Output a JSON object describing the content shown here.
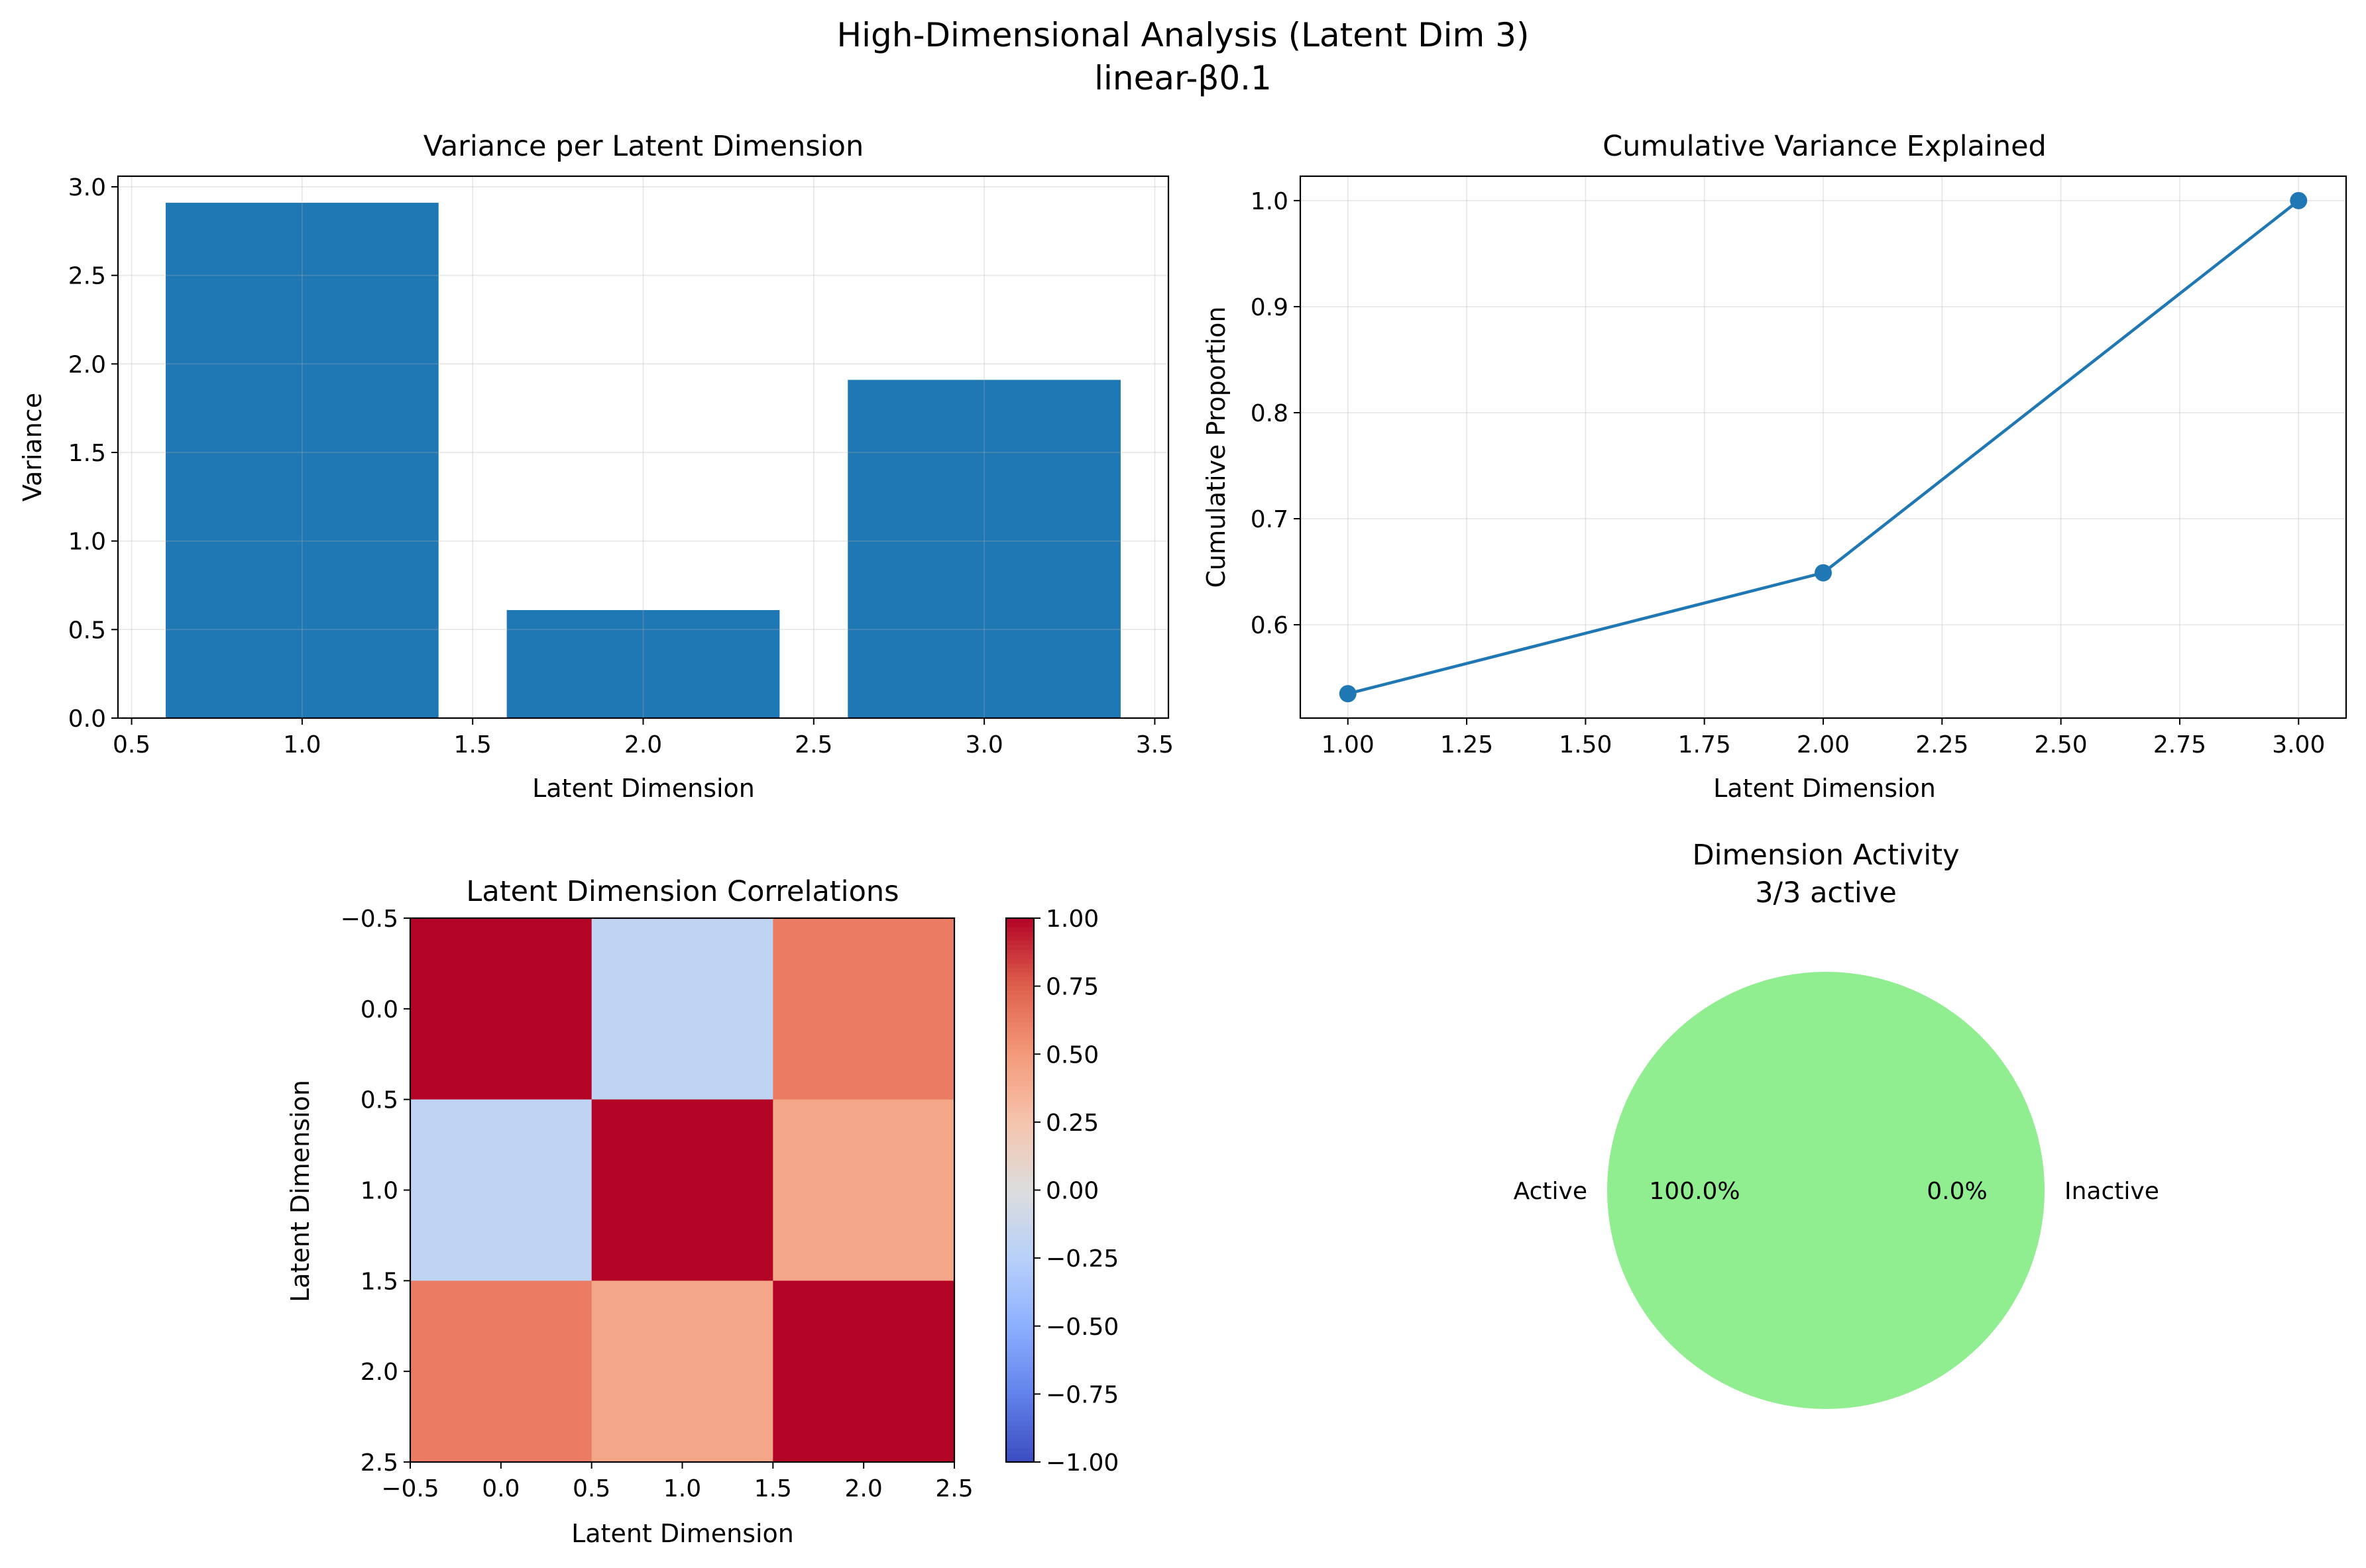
{
  "figure": {
    "title_line1": "High-Dimensional Analysis (Latent Dim 3)",
    "title_line2": "linear-β0.1"
  },
  "chart_data": [
    {
      "type": "bar",
      "title": "Variance per Latent Dimension",
      "xlabel": "Latent Dimension",
      "ylabel": "Variance",
      "x": [
        1,
        2,
        3
      ],
      "values": [
        2.91,
        0.61,
        1.91
      ],
      "bar_width": 0.8,
      "xlim": [
        0.46,
        3.54
      ],
      "ylim": [
        0,
        3.06
      ],
      "xticks": [
        0.5,
        1.0,
        1.5,
        2.0,
        2.5,
        3.0,
        3.5
      ],
      "xtick_labels": [
        "0.5",
        "1.0",
        "1.5",
        "2.0",
        "2.5",
        "3.0",
        "3.5"
      ],
      "yticks": [
        0,
        0.5,
        1.0,
        1.5,
        2.0,
        2.5,
        3.0
      ],
      "ytick_labels": [
        "0.0",
        "0.5",
        "1.0",
        "1.5",
        "2.0",
        "2.5",
        "3.0"
      ],
      "color": "#1f77b4",
      "grid": true
    },
    {
      "type": "line",
      "title": "Cumulative Variance Explained",
      "xlabel": "Latent Dimension",
      "ylabel": "Cumulative Proportion",
      "x": [
        1,
        2,
        3
      ],
      "values": [
        0.535,
        0.649,
        1.0
      ],
      "xlim": [
        0.9,
        3.1
      ],
      "ylim": [
        0.512,
        1.023
      ],
      "xticks": [
        1.0,
        1.25,
        1.5,
        1.75,
        2.0,
        2.25,
        2.5,
        2.75,
        3.0
      ],
      "xtick_labels": [
        "1.00",
        "1.25",
        "1.50",
        "1.75",
        "2.00",
        "2.25",
        "2.50",
        "2.75",
        "3.00"
      ],
      "yticks": [
        0.6,
        0.7,
        0.8,
        0.9,
        1.0
      ],
      "ytick_labels": [
        "0.6",
        "0.7",
        "0.8",
        "0.9",
        "1.0"
      ],
      "color": "#1f77b4",
      "marker": "circle",
      "grid": true
    },
    {
      "type": "heatmap",
      "title": "Latent Dimension Correlations",
      "xlabel": "Latent Dimension",
      "ylabel": "Latent Dimension",
      "matrix": [
        [
          1.0,
          -0.2,
          0.63
        ],
        [
          -0.2,
          1.0,
          0.43
        ],
        [
          0.63,
          0.43,
          1.0
        ]
      ],
      "xlim": [
        -0.5,
        2.5
      ],
      "ylim": [
        2.5,
        -0.5
      ],
      "ticks": [
        -0.5,
        0.0,
        0.5,
        1.0,
        1.5,
        2.0,
        2.5
      ],
      "tick_labels": [
        "−0.5",
        "0.0",
        "0.5",
        "1.0",
        "1.5",
        "2.0",
        "2.5"
      ],
      "colormap": "coolwarm",
      "vmin": -1.0,
      "vmax": 1.0,
      "colorbar_ticks": [
        1.0,
        0.75,
        0.5,
        0.25,
        0.0,
        -0.25,
        -0.5,
        -0.75,
        -1.0
      ],
      "colorbar_tick_labels": [
        "1.00",
        "0.75",
        "0.50",
        "0.25",
        "0.00",
        "−0.25",
        "−0.50",
        "−0.75",
        "−1.00"
      ]
    },
    {
      "type": "pie",
      "title_line1": "Dimension Activity",
      "title_line2": "3/3 active",
      "labels": [
        "Active",
        "Inactive"
      ],
      "values": [
        3,
        0
      ],
      "percent_labels": [
        "100.0%",
        "0.0%"
      ],
      "colors": [
        "#90ee90",
        "#f08080"
      ]
    }
  ]
}
